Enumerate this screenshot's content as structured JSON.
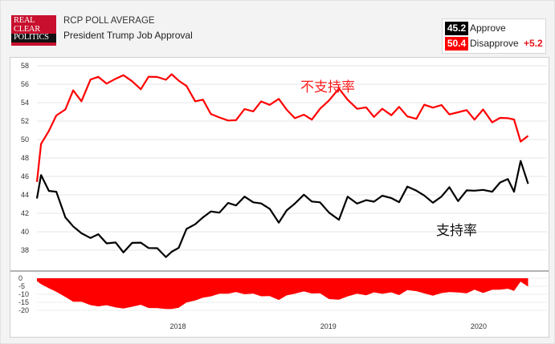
{
  "header": {
    "logo_lines": [
      "REAL",
      "CLEAR",
      "POLITICS"
    ],
    "title": "RCP POLL AVERAGE",
    "subtitle": "President Trump Job Approval"
  },
  "legend": {
    "approve_value": "45.2",
    "approve_label": "Approve",
    "disapprove_value": "50.4",
    "disapprove_label": "Disapprove",
    "spread": "+5.2"
  },
  "colors": {
    "approve": "#000000",
    "disapprove": "#ff0000",
    "spread_text": "#e8151b",
    "logo_red": "#c8102e"
  },
  "chart_data": [
    {
      "type": "line",
      "title": "",
      "xlabel": "",
      "ylabel": "",
      "x": [
        "2017-01-22",
        "2017-02-01",
        "2017-02-20",
        "2017-03-10",
        "2017-04-01",
        "2017-04-20",
        "2017-05-10",
        "2017-06-01",
        "2017-06-20",
        "2017-07-10",
        "2017-08-01",
        "2017-08-20",
        "2017-09-10",
        "2017-10-01",
        "2017-10-20",
        "2017-11-10",
        "2017-12-01",
        "2017-12-15",
        "2018-01-01",
        "2018-01-20",
        "2018-02-10",
        "2018-03-01",
        "2018-03-20",
        "2018-04-10",
        "2018-05-01",
        "2018-05-20",
        "2018-06-10",
        "2018-07-01",
        "2018-07-20",
        "2018-08-10",
        "2018-09-01",
        "2018-09-20",
        "2018-10-10",
        "2018-11-01",
        "2018-11-20",
        "2018-12-10",
        "2019-01-01",
        "2019-01-25",
        "2019-02-15",
        "2019-03-10",
        "2019-04-01",
        "2019-04-20",
        "2019-05-10",
        "2019-06-01",
        "2019-06-20",
        "2019-07-10",
        "2019-08-01",
        "2019-08-20",
        "2019-09-10",
        "2019-10-01",
        "2019-10-20",
        "2019-11-10",
        "2019-12-01",
        "2019-12-20",
        "2020-01-10",
        "2020-02-01",
        "2020-02-20",
        "2020-03-10",
        "2020-03-25",
        "2020-04-10",
        "2020-04-28"
      ],
      "series": [
        {
          "name": "Approve",
          "color": "#000000",
          "values": [
            43.6,
            46.0,
            44.7,
            44.0,
            41.9,
            40.3,
            40.0,
            39.3,
            39.6,
            39.0,
            38.5,
            38.1,
            38.5,
            39.0,
            38.2,
            38.1,
            37.5,
            37.5,
            38.6,
            40.0,
            41.0,
            41.5,
            42.1,
            42.3,
            42.8,
            43.2,
            43.5,
            43.4,
            43.0,
            42.4,
            41.2,
            42.0,
            43.4,
            43.7,
            43.5,
            43.1,
            42.0,
            41.5,
            43.5,
            43.4,
            43.1,
            43.5,
            43.8,
            43.6,
            43.4,
            44.6,
            44.8,
            43.6,
            43.4,
            43.7,
            44.8,
            43.5,
            44.2,
            44.8,
            44.2,
            44.6,
            45.2,
            45.7,
            44.5,
            47.4,
            45.2
          ]
        },
        {
          "name": "Disapprove",
          "color": "#ff0000",
          "values": [
            45.4,
            49.7,
            50.9,
            52.5,
            53.5,
            55.0,
            54.5,
            56.2,
            57.0,
            56.0,
            56.5,
            57.2,
            56.0,
            55.8,
            56.5,
            57.0,
            56.4,
            57.0,
            56.6,
            55.5,
            54.5,
            54.0,
            53.0,
            52.3,
            52.0,
            52.3,
            53.0,
            53.4,
            53.8,
            54.0,
            54.3,
            53.2,
            52.5,
            52.4,
            52.5,
            53.0,
            54.5,
            55.4,
            54.3,
            53.5,
            53.2,
            52.8,
            53.0,
            52.9,
            53.4,
            52.5,
            52.4,
            53.5,
            53.8,
            53.4,
            53.0,
            52.8,
            53.2,
            52.3,
            53.0,
            52.2,
            52.0,
            52.6,
            52.0,
            49.8,
            50.4
          ]
        }
      ],
      "ylim": [
        37,
        58
      ],
      "yticks": [
        38,
        40,
        42,
        44,
        46,
        48,
        50,
        52,
        54,
        56,
        58
      ],
      "grid": true,
      "annotations": [
        {
          "text": "不支持率",
          "series": "Disapprove"
        },
        {
          "text": "支持率",
          "series": "Approve"
        }
      ]
    },
    {
      "type": "area",
      "title": "",
      "ylim": [
        -20,
        0
      ],
      "yticks": [
        0,
        -5,
        -10,
        -15,
        -20
      ],
      "xticks": [
        "2018",
        "2019",
        "2020"
      ],
      "series": [
        {
          "name": "Spread",
          "color": "#ff0000",
          "values": [
            -1.8,
            -3.7,
            -6.2,
            -8.5,
            -11.6,
            -14.7,
            -14.5,
            -16.9,
            -17.4,
            -17.0,
            -18.0,
            -19.1,
            -17.5,
            -16.8,
            -18.3,
            -18.9,
            -18.9,
            -19.5,
            -18.0,
            -15.5,
            -13.5,
            -12.5,
            -10.9,
            -10.0,
            -9.2,
            -9.1,
            -9.5,
            -10.0,
            -10.8,
            -11.6,
            -13.1,
            -11.2,
            -9.1,
            -8.7,
            -9.0,
            -9.9,
            -12.5,
            -13.9,
            -10.8,
            -10.1,
            -10.1,
            -9.3,
            -9.2,
            -9.3,
            -10.0,
            -7.9,
            -7.6,
            -9.9,
            -10.4,
            -9.7,
            -8.2,
            -9.3,
            -9.0,
            -7.5,
            -8.8,
            -7.6,
            -6.8,
            -6.9,
            -7.5,
            -2.4,
            -5.2
          ]
        }
      ]
    }
  ]
}
